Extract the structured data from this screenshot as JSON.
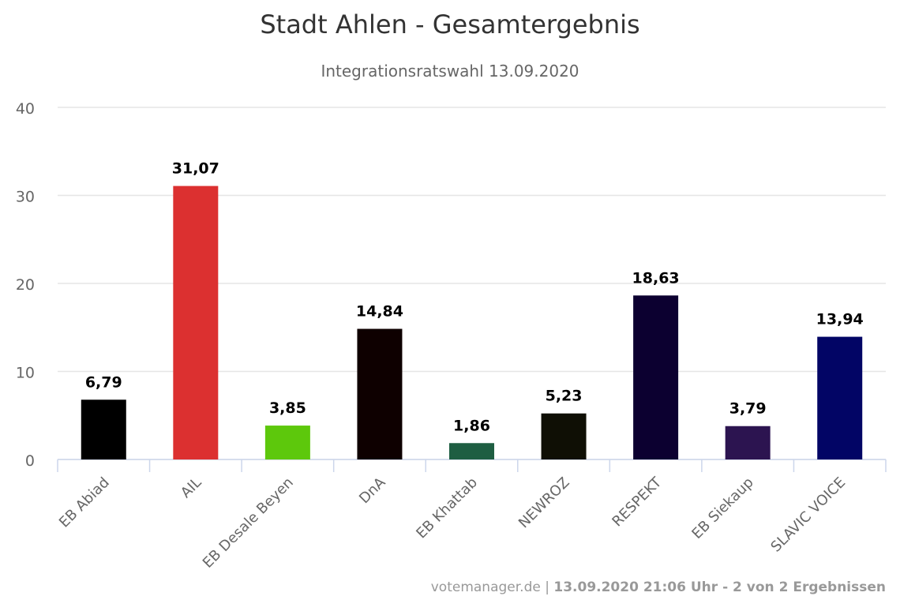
{
  "chart_data": {
    "type": "bar",
    "title": "Stadt Ahlen - Gesamtergebnis",
    "subtitle": "Integrationsratswahl 13.09.2020",
    "categories": [
      "EB Abiad",
      "AIL",
      "EB Desale Beyen",
      "DnA",
      "EB Khattab",
      "NEWROZ",
      "RESPEKT",
      "EB Siekaup",
      "SLAVIC VOICE"
    ],
    "values": [
      6.79,
      31.07,
      3.85,
      14.84,
      1.86,
      5.23,
      18.63,
      3.79,
      13.94
    ],
    "value_labels": [
      "6,79",
      "31,07",
      "3,85",
      "14,84",
      "1,86",
      "5,23",
      "18,63",
      "3,79",
      "13,94"
    ],
    "colors": [
      "#000000",
      "#dc3030",
      "#5dc80c",
      "#0e0000",
      "#1e5e42",
      "#0f0f05",
      "#0c0030",
      "#2c1450",
      "#020565"
    ],
    "ylim": [
      0,
      40
    ],
    "yticks": [
      "0",
      "10",
      "20",
      "30",
      "40"
    ],
    "grid": true,
    "legend": "none"
  },
  "credit": {
    "site": "votemanager.de",
    "separator": " | ",
    "timestamp": "13.09.2020 21:06 Uhr - 2 von 2 Ergebnissen"
  }
}
